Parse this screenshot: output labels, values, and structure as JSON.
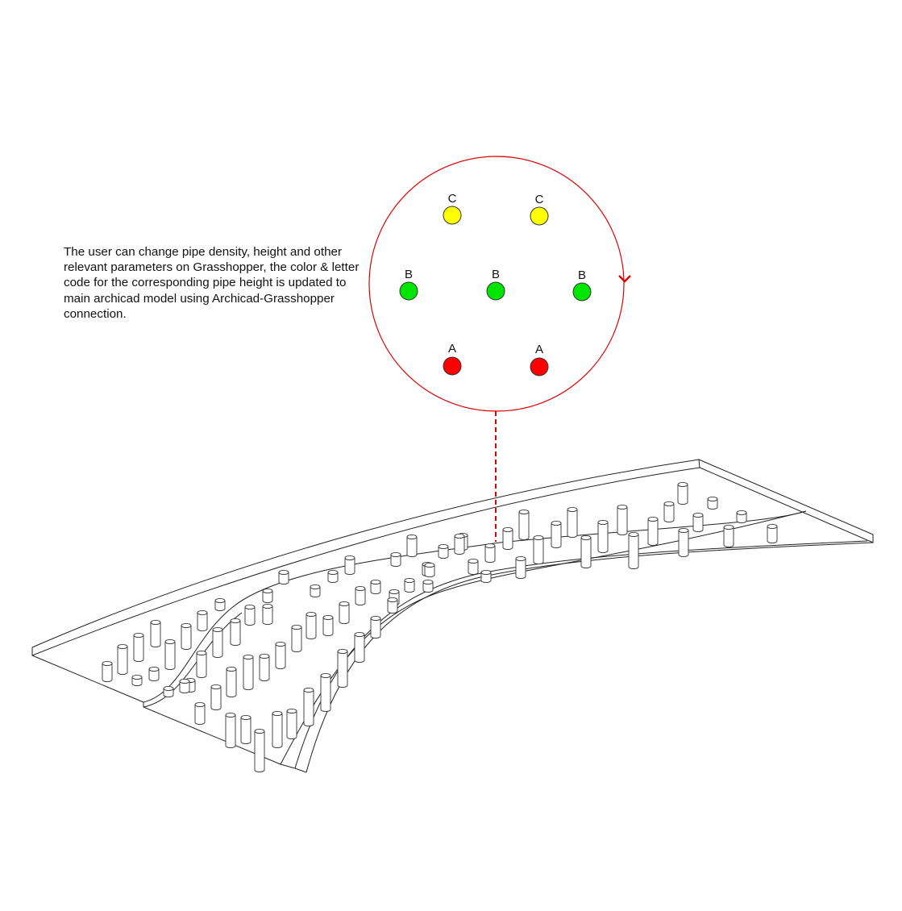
{
  "description": "The user can change pipe density, height and other relevant parameters on Grasshopper, the color & letter code for the corresponding pipe height is updated to main archicad model using Archicad-Grasshopper connection.",
  "colors": {
    "A": "#ff0000",
    "B": "#00e600",
    "C": "#ffff00",
    "accent": "#e00000",
    "line": "#222222"
  },
  "markers": [
    {
      "code": "C"
    },
    {
      "code": "C"
    },
    {
      "code": "B"
    },
    {
      "code": "B"
    },
    {
      "code": "B"
    },
    {
      "code": "A"
    },
    {
      "code": "A"
    }
  ]
}
